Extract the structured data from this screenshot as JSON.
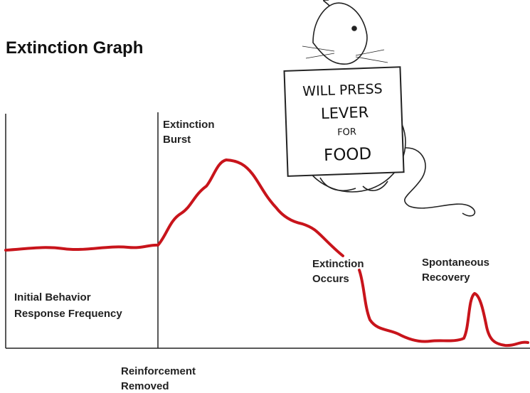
{
  "header": {
    "title": "Extinction Graph"
  },
  "labels": {
    "extinction_burst": [
      "Extinction",
      "Burst"
    ],
    "initial_behavior": [
      "Initial Behavior",
      "Response Frequency"
    ],
    "reinforcement_removed": [
      "Reinforcement",
      "Removed"
    ],
    "extinction_occurs": [
      "Extinction",
      "Occurs"
    ],
    "spontaneous_recovery": [
      "Spontaneous",
      "Recovery"
    ]
  },
  "sign": {
    "lines": [
      "WILL PRESS",
      "LEVER",
      "FOR",
      "FOOD"
    ]
  }
}
